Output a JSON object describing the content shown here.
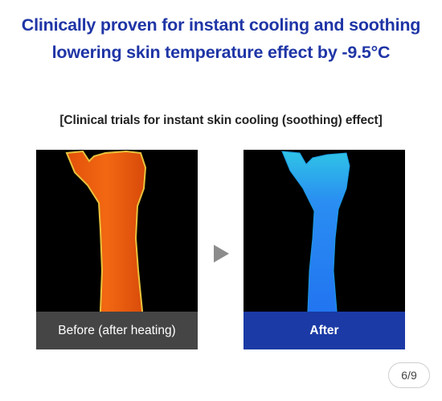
{
  "headline": {
    "line1": "Clinically proven for instant cooling and soothing",
    "line2": "lowering skin temperature effect by -9.5°C"
  },
  "subtitle": "[Clinical trials for instant skin cooling (soothing) effect]",
  "comparison": {
    "before_label": "Before (after heating)",
    "after_label": "After",
    "arrow_icon": "play-arrow-icon"
  },
  "pager": "6/9",
  "colors": {
    "headline": "#1f35a6",
    "before_caption_bg": "#454545",
    "after_caption_bg": "#1b3aa5",
    "arrow": "#8c8c8c"
  }
}
